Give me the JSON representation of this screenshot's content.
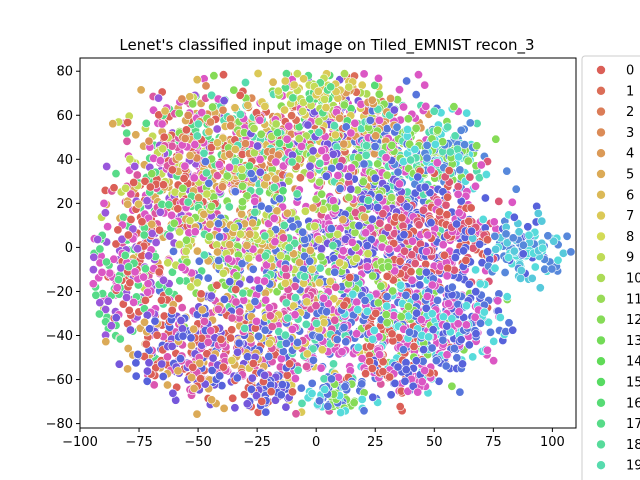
{
  "chart_data": {
    "type": "scatter",
    "title": "Lenet's classified input image on Tiled_EMNIST recon_3",
    "xlabel": "",
    "ylabel": "",
    "xlim": [
      -100,
      110
    ],
    "ylim": [
      -82,
      86
    ],
    "xticks": [
      -100,
      -75,
      -50,
      -25,
      0,
      25,
      50,
      75,
      100
    ],
    "yticks": [
      -80,
      -60,
      -40,
      -20,
      0,
      20,
      40,
      60,
      80
    ],
    "xtick_labels": [
      "−100",
      "−75",
      "−50",
      "−25",
      "0",
      "25",
      "50",
      "75",
      "100"
    ],
    "ytick_labels": [
      "−80",
      "−60",
      "−40",
      "−20",
      "0",
      "20",
      "40",
      "60",
      "80"
    ],
    "grid": false,
    "legend_position": "right, outside plot",
    "legend": [
      {
        "label": "0",
        "color": "#db5f57"
      },
      {
        "label": "1",
        "color": "#db6d57"
      },
      {
        "label": "2",
        "color": "#db7c57"
      },
      {
        "label": "3",
        "color": "#db8b57"
      },
      {
        "label": "4",
        "color": "#db9a57"
      },
      {
        "label": "5",
        "color": "#dbaa57"
      },
      {
        "label": "6",
        "color": "#dbb957"
      },
      {
        "label": "7",
        "color": "#dbc957"
      },
      {
        "label": "8",
        "color": "#d3db57"
      },
      {
        "label": "9",
        "color": "#bfdb57"
      },
      {
        "label": "10",
        "color": "#acdb57"
      },
      {
        "label": "11",
        "color": "#99db57"
      },
      {
        "label": "12",
        "color": "#86db57"
      },
      {
        "label": "13",
        "color": "#73db57"
      },
      {
        "label": "14",
        "color": "#60db57"
      },
      {
        "label": "15",
        "color": "#57db62"
      },
      {
        "label": "16",
        "color": "#57db75"
      },
      {
        "label": "17",
        "color": "#57db88"
      },
      {
        "label": "18",
        "color": "#57db9b"
      },
      {
        "label": "19",
        "color": "#57dbae"
      }
    ],
    "clusters": [
      {
        "cx": -60,
        "cy": 30,
        "sx": 14,
        "sy": 20,
        "n": 420,
        "colors": [
          "#db5f57",
          "#dbaa57",
          "#57db88",
          "#db57c4",
          "#9957db",
          "#db57a0",
          "#c4db57"
        ]
      },
      {
        "cx": -30,
        "cy": 45,
        "sx": 14,
        "sy": 14,
        "n": 320,
        "colors": [
          "#db8b57",
          "#db57c4",
          "#86db57",
          "#dbb957",
          "#57dbae",
          "#db5f57"
        ]
      },
      {
        "cx": 5,
        "cy": 50,
        "sx": 14,
        "sy": 14,
        "n": 360,
        "colors": [
          "#dbc957",
          "#57db75",
          "#db57c4",
          "#7557db",
          "#db6d57",
          "#acdb57"
        ]
      },
      {
        "cx": 30,
        "cy": 40,
        "sx": 12,
        "sy": 16,
        "n": 300,
        "colors": [
          "#57dbae",
          "#db57c4",
          "#5775db",
          "#86db57",
          "#db9a57"
        ]
      },
      {
        "cx": 55,
        "cy": 42,
        "sx": 10,
        "sy": 8,
        "n": 150,
        "colors": [
          "#57dbae",
          "#57dbdb",
          "#86db57",
          "#5788db"
        ]
      },
      {
        "cx": 20,
        "cy": 5,
        "sx": 15,
        "sy": 15,
        "n": 380,
        "colors": [
          "#db57c4",
          "#db5788",
          "#5762db",
          "#7557db",
          "#99db57"
        ]
      },
      {
        "cx": 55,
        "cy": 5,
        "sx": 12,
        "sy": 14,
        "n": 260,
        "colors": [
          "#db57c4",
          "#db5775",
          "#5762db",
          "#db5f57"
        ]
      },
      {
        "cx": 88,
        "cy": 0,
        "sx": 8,
        "sy": 8,
        "n": 120,
        "colors": [
          "#57dbdb",
          "#5788db",
          "#57c9db",
          "#5762db"
        ]
      },
      {
        "cx": -25,
        "cy": 0,
        "sx": 18,
        "sy": 14,
        "n": 420,
        "colors": [
          "#86db57",
          "#5775db",
          "#db57c4",
          "#57db9b",
          "#dbaa57",
          "#c4db57"
        ]
      },
      {
        "cx": -80,
        "cy": -15,
        "sx": 9,
        "sy": 12,
        "n": 180,
        "colors": [
          "#db57c4",
          "#57db88",
          "#9957db",
          "#db5f57"
        ]
      },
      {
        "cx": -45,
        "cy": -45,
        "sx": 15,
        "sy": 12,
        "n": 380,
        "colors": [
          "#5762db",
          "#db5f57",
          "#7557db",
          "#db57b1",
          "#dbaa57"
        ]
      },
      {
        "cx": 0,
        "cy": -35,
        "sx": 14,
        "sy": 15,
        "n": 330,
        "colors": [
          "#db57c4",
          "#5775db",
          "#57dbae",
          "#dbc957",
          "#db57a0"
        ]
      },
      {
        "cx": 35,
        "cy": -35,
        "sx": 12,
        "sy": 14,
        "n": 320,
        "colors": [
          "#86db57",
          "#db57c4",
          "#57dbdb",
          "#5775db",
          "#db5f57"
        ]
      },
      {
        "cx": 60,
        "cy": -35,
        "sx": 9,
        "sy": 10,
        "n": 180,
        "colors": [
          "#5775db",
          "#57dbdb",
          "#db57c4",
          "#5762db"
        ]
      },
      {
        "cx": -20,
        "cy": -65,
        "sx": 6,
        "sy": 5,
        "n": 60,
        "colors": [
          "#5762db",
          "#db5f57",
          "#7557db"
        ]
      },
      {
        "cx": 8,
        "cy": -68,
        "sx": 7,
        "sy": 4,
        "n": 60,
        "colors": [
          "#57dbdb",
          "#5775db",
          "#86db57"
        ]
      },
      {
        "cx": 35,
        "cy": -58,
        "sx": 8,
        "sy": 5,
        "n": 70,
        "colors": [
          "#5762db",
          "#db5f57",
          "#db57c4"
        ]
      },
      {
        "cx": 0,
        "cy": 72,
        "sx": 8,
        "sy": 4,
        "n": 50,
        "colors": [
          "#dbc957",
          "#c4db57",
          "#57db88"
        ]
      }
    ]
  }
}
